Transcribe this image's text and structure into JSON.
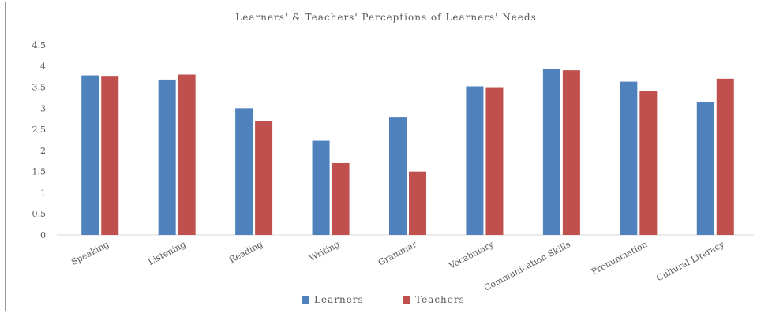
{
  "chart_data": {
    "type": "bar",
    "title": "Learners' & Teachers' Perceptions of Learners' Needs",
    "xlabel": "",
    "ylabel": "",
    "categories": [
      "Speaking",
      "Listening",
      "Reading",
      "Writing",
      "Grammar",
      "Vocabulary",
      "Communication Skills",
      "Pronunciation",
      "Cultural Literacy"
    ],
    "series": [
      {
        "name": "Learners",
        "color": "#4f81bd",
        "values": [
          3.78,
          3.68,
          3.0,
          2.23,
          2.78,
          3.52,
          3.93,
          3.63,
          3.15
        ]
      },
      {
        "name": "Teachers",
        "color": "#c0504d",
        "values": [
          3.75,
          3.8,
          2.7,
          1.7,
          1.5,
          3.5,
          3.9,
          3.4,
          3.7
        ]
      }
    ],
    "ylim": [
      0,
      4.5
    ],
    "yticks": [
      "0",
      "0.5",
      "1",
      "1.5",
      "2",
      "2.5",
      "3",
      "3.5",
      "4",
      "4.5"
    ],
    "grid": false,
    "legend": "bottom"
  }
}
